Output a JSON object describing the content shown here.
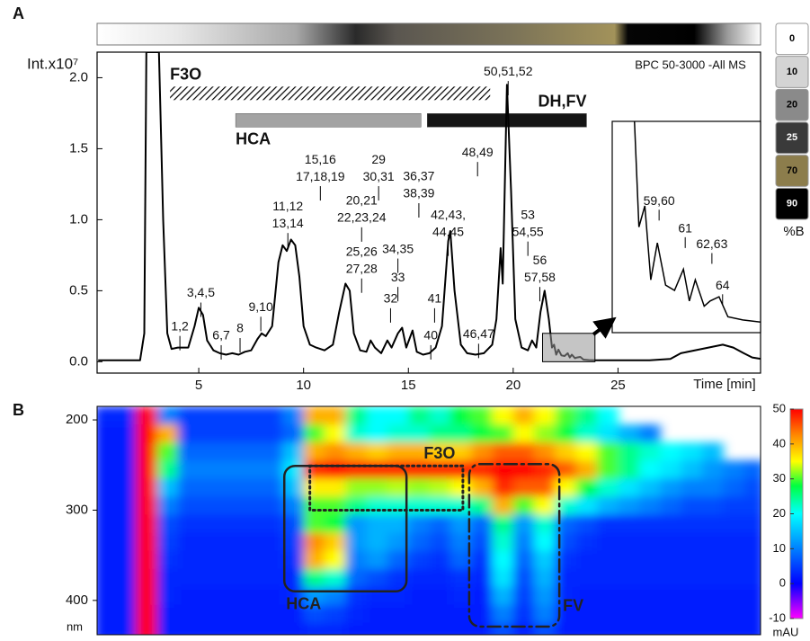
{
  "chart_data": [
    {
      "type": "line",
      "panel_label": "A",
      "ylabel": "Int.x10⁷",
      "xlabel": "Time [min]",
      "note": "BPC 50-3000 -All MS",
      "x": [
        0.2,
        1.5,
        2.2,
        2.4,
        2.5,
        3.1,
        3.3,
        3.5,
        3.7,
        4.0,
        4.2,
        4.5,
        4.8,
        5.0,
        5.2,
        5.4,
        5.7,
        6.0,
        6.3,
        6.6,
        6.9,
        7.2,
        7.5,
        7.8,
        8.0,
        8.2,
        8.5,
        8.8,
        9.0,
        9.2,
        9.4,
        9.6,
        9.8,
        10.0,
        10.3,
        10.6,
        11.0,
        11.4,
        11.7,
        12.0,
        12.2,
        12.4,
        12.7,
        13.0,
        13.2,
        13.4,
        13.7,
        14.0,
        14.2,
        14.5,
        14.7,
        14.9,
        15.2,
        15.4,
        15.7,
        16.0,
        16.3,
        16.6,
        16.9,
        17.0,
        17.2,
        17.5,
        17.8,
        18.2,
        18.6,
        19.0,
        19.2,
        19.4,
        19.5,
        19.7,
        19.9,
        20.1,
        20.4,
        20.7,
        20.9,
        21.1,
        21.3,
        21.5,
        21.7,
        21.85,
        21.95,
        22.05,
        22.16,
        22.3,
        22.45,
        22.6,
        22.7,
        22.8,
        22.95,
        23.05,
        23.2,
        23.35,
        23.6,
        23.9,
        24.5,
        25.5,
        26.5,
        27.5,
        28,
        29,
        30,
        30.5,
        31,
        31.4,
        31.8
      ],
      "values": [
        0.01,
        0.01,
        0.01,
        0.2,
        2.18,
        2.18,
        1.0,
        0.2,
        0.09,
        0.1,
        0.1,
        0.1,
        0.25,
        0.38,
        0.33,
        0.15,
        0.08,
        0.06,
        0.05,
        0.06,
        0.05,
        0.07,
        0.08,
        0.16,
        0.2,
        0.18,
        0.25,
        0.7,
        0.82,
        0.78,
        0.86,
        0.82,
        0.6,
        0.25,
        0.12,
        0.1,
        0.08,
        0.12,
        0.35,
        0.55,
        0.5,
        0.2,
        0.08,
        0.07,
        0.15,
        0.1,
        0.06,
        0.15,
        0.1,
        0.2,
        0.24,
        0.1,
        0.22,
        0.07,
        0.05,
        0.06,
        0.1,
        0.25,
        0.85,
        0.92,
        0.5,
        0.12,
        0.06,
        0.05,
        0.06,
        0.12,
        0.3,
        0.8,
        0.55,
        1.95,
        1.2,
        0.3,
        0.1,
        0.08,
        0.15,
        0.1,
        0.35,
        0.5,
        0.3,
        0.1,
        0.12,
        0.05,
        0.085,
        0.045,
        0.04,
        0.06,
        0.03,
        0.05,
        0.025,
        0.03,
        0.034,
        0.015,
        0.012,
        0.01,
        0.01,
        0.01,
        0.01,
        0.02,
        0.06,
        0.09,
        0.12,
        0.1,
        0.06,
        0.03,
        0.02
      ],
      "color": "#000000",
      "xlim": [
        0.15,
        31.8
      ],
      "ylim": [
        -0.08,
        2.18
      ],
      "xticks": [
        5,
        10,
        15,
        20,
        25
      ],
      "yticks": [
        {
          "value": 0,
          "label": "0.0"
        },
        {
          "value": 0.5,
          "label": "0.5"
        },
        {
          "value": 1,
          "label": "1.0"
        },
        {
          "value": 1.5,
          "label": "1.5"
        },
        {
          "value": 2,
          "label": "2.0"
        }
      ],
      "regions": [
        {
          "label": "F3O",
          "start": 3.63,
          "end": 18.9,
          "y": 1.89,
          "fill": "hatch",
          "label_side": "top",
          "label_anchor": "start"
        },
        {
          "label": "HCA",
          "start": 6.76,
          "end": 15.6,
          "y": 1.7,
          "fill": "#a3a3a3",
          "label_side": "bottom",
          "label_anchor": "start"
        },
        {
          "label": "DH,FV",
          "start": 15.9,
          "end": 23.5,
          "y": 1.7,
          "fill": "#151515",
          "label_side": "top",
          "label_anchor": "end"
        }
      ],
      "annotations": [
        {
          "text": [
            "1,2"
          ],
          "x": 4.1,
          "y": 0.245
        },
        {
          "text": [
            "3,4,5"
          ],
          "x": 5.1,
          "y": 0.48
        },
        {
          "text": [
            "6,7"
          ],
          "x": 6.07,
          "y": 0.18
        },
        {
          "text": [
            "8"
          ],
          "x": 6.97,
          "y": 0.23
        },
        {
          "text": [
            "9,10"
          ],
          "x": 7.96,
          "y": 0.38
        },
        {
          "text": [
            "11,12",
            "13,14"
          ],
          "x": 9.25,
          "y": 1.09
        },
        {
          "text": [
            "15,16",
            "17,18,19"
          ],
          "x": 10.8,
          "y": 1.42
        },
        {
          "text": [
            "20,21",
            "22,23,24"
          ],
          "x": 12.77,
          "y": 1.13
        },
        {
          "text": [
            "25,26",
            "27,28"
          ],
          "x": 12.77,
          "y": 0.77
        },
        {
          "text": [
            "29",
            "30,31"
          ],
          "x": 13.58,
          "y": 1.42
        },
        {
          "text": [
            "32"
          ],
          "x": 14.15,
          "y": 0.44
        },
        {
          "text": [
            "33"
          ],
          "x": 14.5,
          "y": 0.59
        },
        {
          "text": [
            "34,35"
          ],
          "x": 14.5,
          "y": 0.79
        },
        {
          "text": [
            "36,37",
            "38,39"
          ],
          "x": 15.5,
          "y": 1.3
        },
        {
          "text": [
            "40"
          ],
          "x": 16.07,
          "y": 0.18
        },
        {
          "text": [
            "41"
          ],
          "x": 16.25,
          "y": 0.44
        },
        {
          "text": [
            "42,43,",
            "44,45"
          ],
          "x": 16.9,
          "y": 1.03
        },
        {
          "text": [
            "46,47"
          ],
          "x": 18.35,
          "y": 0.19
        },
        {
          "text": [
            "48,49"
          ],
          "x": 18.3,
          "y": 1.47
        },
        {
          "text": [
            "50,51,52"
          ],
          "x": 19.76,
          "y": 2.04
        },
        {
          "text": [
            "53",
            "54,55"
          ],
          "x": 20.7,
          "y": 1.03
        },
        {
          "text": [
            "56",
            "57,58"
          ],
          "x": 21.27,
          "y": 0.71
        }
      ],
      "inset": {
        "xlim": [
          21.4,
          23.9
        ],
        "ylim": [
          0,
          0.2
        ],
        "annotations": [
          {
            "text": "59,60",
            "x": 22.19,
            "y": 0.124
          },
          {
            "text": "61",
            "x": 22.63,
            "y": 0.098
          },
          {
            "text": "62,63",
            "x": 23.08,
            "y": 0.083
          },
          {
            "text": "64",
            "x": 23.26,
            "y": 0.044
          }
        ]
      },
      "gradient_legend": {
        "title": "%B",
        "labels": [
          0,
          10,
          20,
          25,
          70,
          90
        ],
        "colors": [
          "#ffffff",
          "#d4d4d4",
          "#8a8a8a",
          "#3a3a3a",
          "#8c7d4c",
          "#000000"
        ]
      }
    },
    {
      "type": "heatmap",
      "panel_label": "B",
      "ylabel": "nm",
      "xlim": [
        0.15,
        31.8
      ],
      "ylim": [
        185,
        438
      ],
      "y_inverted": true,
      "yticks": [
        200,
        300,
        400
      ],
      "x": [
        0.5,
        1.5,
        2.5,
        3.5,
        4.5,
        5.5,
        6.5,
        7.5,
        8.5,
        9.5,
        10.5,
        11.5,
        12.5,
        13.5,
        14.5,
        15.5,
        16.5,
        17.5,
        18.5,
        19.5,
        20.5,
        21.5,
        22.5,
        23.5,
        24.5,
        25.5,
        26.5,
        27.5,
        28.5,
        29.5,
        30.5,
        31.5
      ],
      "y": [
        195,
        215,
        235,
        255,
        275,
        295,
        315,
        335,
        355,
        375,
        395,
        415,
        435
      ],
      "z": [
        [
          3,
          3,
          50,
          10,
          5,
          5,
          5,
          5,
          5,
          10,
          40,
          40,
          25,
          20,
          20,
          25,
          22,
          28,
          30,
          35,
          40,
          35,
          30,
          25,
          20,
          null,
          null,
          null,
          null,
          null,
          null,
          null
        ],
        [
          2,
          2,
          50,
          40,
          5,
          5,
          5,
          5,
          5,
          8,
          30,
          35,
          22,
          20,
          22,
          22,
          25,
          25,
          28,
          30,
          35,
          32,
          28,
          22,
          18,
          14,
          10,
          null,
          null,
          null,
          null,
          null
        ],
        [
          2,
          2,
          50,
          30,
          8,
          8,
          8,
          8,
          8,
          15,
          40,
          42,
          40,
          38,
          40,
          40,
          38,
          38,
          42,
          45,
          45,
          42,
          38,
          35,
          30,
          25,
          22,
          20,
          18,
          15,
          null,
          null
        ],
        [
          2,
          2,
          50,
          25,
          10,
          10,
          10,
          10,
          10,
          18,
          48,
          50,
          48,
          48,
          48,
          48,
          48,
          48,
          48,
          50,
          50,
          48,
          45,
          40,
          30,
          25,
          20,
          18,
          15,
          12,
          10,
          8
        ],
        [
          2,
          2,
          50,
          15,
          8,
          8,
          8,
          8,
          8,
          15,
          36,
          36,
          32,
          32,
          33,
          32,
          33,
          35,
          40,
          48,
          45,
          45,
          35,
          28,
          22,
          18,
          15,
          12,
          10,
          10,
          8,
          6
        ],
        [
          2,
          2,
          50,
          10,
          6,
          6,
          6,
          6,
          6,
          10,
          30,
          30,
          25,
          22,
          22,
          22,
          22,
          22,
          25,
          40,
          30,
          35,
          22,
          18,
          14,
          12,
          10,
          8,
          6,
          6,
          5,
          5
        ],
        [
          2,
          2,
          50,
          6,
          4,
          4,
          4,
          4,
          4,
          6,
          30,
          28,
          12,
          14,
          14,
          10,
          8,
          12,
          8,
          25,
          12,
          22,
          8,
          6,
          4,
          4,
          4,
          4,
          4,
          4,
          4,
          4
        ],
        [
          2,
          2,
          50,
          5,
          3,
          3,
          3,
          3,
          3,
          5,
          42,
          38,
          12,
          14,
          12,
          8,
          6,
          10,
          6,
          22,
          10,
          20,
          6,
          4,
          3,
          3,
          3,
          3,
          3,
          3,
          3,
          3
        ],
        [
          2,
          2,
          50,
          4,
          3,
          3,
          3,
          3,
          3,
          4,
          40,
          35,
          10,
          12,
          8,
          5,
          4,
          8,
          4,
          20,
          8,
          16,
          4,
          3,
          3,
          3,
          3,
          3,
          3,
          3,
          3,
          3
        ],
        [
          2,
          2,
          50,
          3,
          3,
          3,
          3,
          3,
          3,
          3,
          25,
          22,
          8,
          6,
          4,
          3,
          3,
          4,
          3,
          18,
          6,
          14,
          3,
          3,
          3,
          3,
          3,
          3,
          3,
          3,
          3,
          3
        ],
        [
          2,
          2,
          50,
          3,
          2,
          2,
          2,
          2,
          2,
          3,
          12,
          10,
          4,
          3,
          3,
          2,
          2,
          3,
          2,
          14,
          5,
          12,
          3,
          2,
          2,
          2,
          2,
          2,
          2,
          2,
          2,
          2
        ],
        [
          2,
          2,
          50,
          2,
          2,
          2,
          2,
          2,
          2,
          2,
          6,
          5,
          3,
          2,
          2,
          2,
          2,
          2,
          2,
          10,
          4,
          10,
          2,
          2,
          2,
          2,
          2,
          2,
          2,
          2,
          2,
          2
        ],
        [
          2,
          2,
          50,
          2,
          2,
          2,
          2,
          2,
          2,
          2,
          3,
          3,
          2,
          2,
          2,
          2,
          2,
          2,
          2,
          6,
          2,
          6,
          2,
          2,
          2,
          2,
          2,
          2,
          2,
          2,
          2,
          2
        ]
      ],
      "colorbar": {
        "label": "mAU",
        "lim": [
          -10,
          50
        ],
        "ticks": [
          -10,
          0,
          10,
          20,
          30,
          40,
          50
        ]
      },
      "colorscale": [
        {
          "value": -10,
          "color": "#ff00ff"
        },
        {
          "value": -5,
          "color": "#8000ff"
        },
        {
          "value": 0,
          "color": "#0000ff"
        },
        {
          "value": 10,
          "color": "#0080ff"
        },
        {
          "value": 20,
          "color": "#00ffff"
        },
        {
          "value": 28,
          "color": "#00ff40"
        },
        {
          "value": 35,
          "color": "#ffff00"
        },
        {
          "value": 43,
          "color": "#ff8000"
        },
        {
          "value": 50,
          "color": "#ff0000"
        }
      ],
      "regions": [
        {
          "label": "HCA",
          "x0": 9.08,
          "x1": 14.91,
          "y0": 251,
          "y1": 390,
          "style": "solid",
          "label_side": "bottom"
        },
        {
          "label": "F3O",
          "x0": 10.3,
          "x1": 17.6,
          "y0": 251,
          "y1": 300,
          "style": "dotted",
          "label_side": "top"
        },
        {
          "label": "FV",
          "x0": 17.9,
          "x1": 22.2,
          "y0": 249,
          "y1": 429,
          "style": "dashdot",
          "label_side": "right"
        }
      ]
    }
  ]
}
